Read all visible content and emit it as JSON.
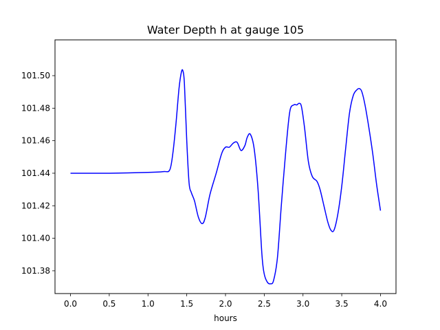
{
  "chart_data": {
    "type": "line",
    "title": "Water Depth h at gauge 105",
    "xlabel": "hours",
    "ylabel": "",
    "xlim": [
      -0.2,
      4.2
    ],
    "ylim": [
      101.366,
      101.522
    ],
    "x_ticks": [
      0.0,
      0.5,
      1.0,
      1.5,
      2.0,
      2.5,
      3.0,
      3.5,
      4.0
    ],
    "x_tick_labels": [
      "0.0",
      "0.5",
      "1.0",
      "1.5",
      "2.0",
      "2.5",
      "3.0",
      "3.5",
      "4.0"
    ],
    "y_ticks": [
      101.38,
      101.4,
      101.42,
      101.44,
      101.46,
      101.48,
      101.5
    ],
    "y_tick_labels": [
      "101.38",
      "101.40",
      "101.42",
      "101.44",
      "101.46",
      "101.48",
      "101.50"
    ],
    "grid": false,
    "legend": "none",
    "series": [
      {
        "color": "#0000ff",
        "x": [
          0.0,
          0.5,
          1.0,
          1.2,
          1.28,
          1.32,
          1.36,
          1.4,
          1.43,
          1.45,
          1.47,
          1.5,
          1.53,
          1.56,
          1.6,
          1.65,
          1.7,
          1.74,
          1.8,
          1.88,
          1.95,
          2.0,
          2.05,
          2.1,
          2.15,
          2.2,
          2.25,
          2.28,
          2.32,
          2.37,
          2.42,
          2.47,
          2.5,
          2.54,
          2.58,
          2.62,
          2.67,
          2.72,
          2.78,
          2.83,
          2.88,
          2.92,
          2.95,
          2.98,
          3.02,
          3.07,
          3.12,
          3.18,
          3.22,
          3.27,
          3.32,
          3.36,
          3.4,
          3.45,
          3.5,
          3.55,
          3.6,
          3.65,
          3.7,
          3.73,
          3.76,
          3.8,
          3.85,
          3.9,
          3.95,
          4.0
        ],
        "y": [
          101.44,
          101.44,
          101.4405,
          101.441,
          101.442,
          101.452,
          101.47,
          101.492,
          101.502,
          101.503,
          101.495,
          101.46,
          101.434,
          101.428,
          101.423,
          101.413,
          101.409,
          101.413,
          101.427,
          101.44,
          101.452,
          101.456,
          101.456,
          101.4585,
          101.459,
          101.454,
          101.457,
          101.462,
          101.464,
          101.455,
          101.43,
          101.39,
          101.378,
          101.373,
          101.372,
          101.374,
          101.388,
          101.42,
          101.455,
          101.478,
          101.482,
          101.482,
          101.483,
          101.481,
          101.468,
          101.447,
          101.438,
          101.435,
          101.43,
          101.42,
          101.41,
          101.405,
          101.405,
          101.415,
          101.432,
          101.455,
          101.477,
          101.488,
          101.4915,
          101.492,
          101.49,
          101.482,
          101.468,
          101.452,
          101.433,
          101.417
        ]
      }
    ]
  }
}
